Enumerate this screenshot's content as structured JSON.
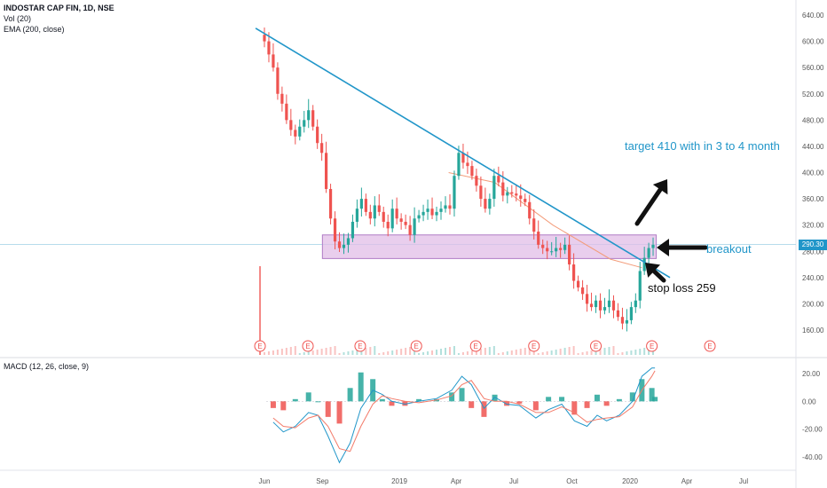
{
  "header": {
    "symbol": "INDOSTAR CAP FIN, 1D, NSE",
    "volume": "Vol (20)",
    "ema": "EMA (200, close)",
    "macd": "MACD (12, 26, close, 9)"
  },
  "colors": {
    "up": "#26a69a",
    "down": "#ef5350",
    "trendline": "#2196c9",
    "ema": "#f39c7a",
    "zone_fill": "#e1bee7",
    "zone_stroke": "#b07cc6",
    "macd_line": "#2196c9",
    "signal_line": "#f37b6a",
    "earnings": "#ef5350"
  },
  "annotations": {
    "target": "target 410 with in 3 to 4 month",
    "breakout": "breakout",
    "stop_loss": "stop loss 259",
    "current_price": "290.30"
  },
  "chart_data": [
    {
      "type": "candlestick",
      "title": "INDOSTAR CAP FIN, 1D, NSE",
      "y_ticks": [
        "640.00",
        "600.00",
        "560.00",
        "520.00",
        "480.00",
        "440.00",
        "400.00",
        "360.00",
        "320.00",
        "280.00",
        "240.00",
        "200.00",
        "160.00"
      ],
      "ylim": [
        120,
        650
      ],
      "x_ticks": [
        "Jun",
        "Sep",
        "2019",
        "Apr",
        "Jul",
        "Oct",
        "2020",
        "Apr",
        "Jul"
      ],
      "close_path": [
        [
          "2018-05-25",
          610
        ],
        [
          "2018-06-01",
          600
        ],
        [
          "2018-06-08",
          580
        ],
        [
          "2018-06-15",
          560
        ],
        [
          "2018-06-22",
          520
        ],
        [
          "2018-06-29",
          505
        ],
        [
          "2018-07-06",
          480
        ],
        [
          "2018-07-13",
          465
        ],
        [
          "2018-07-20",
          455
        ],
        [
          "2018-07-27",
          470
        ],
        [
          "2018-08-03",
          480
        ],
        [
          "2018-08-10",
          495
        ],
        [
          "2018-08-17",
          470
        ],
        [
          "2018-08-24",
          445
        ],
        [
          "2018-08-31",
          430
        ],
        [
          "2018-09-07",
          375
        ],
        [
          "2018-09-14",
          330
        ],
        [
          "2018-09-21",
          295
        ],
        [
          "2018-09-28",
          285
        ],
        [
          "2018-10-05",
          290
        ],
        [
          "2018-10-12",
          300
        ],
        [
          "2018-10-19",
          325
        ],
        [
          "2018-10-26",
          345
        ],
        [
          "2018-11-02",
          360
        ],
        [
          "2018-11-09",
          340
        ],
        [
          "2018-11-16",
          330
        ],
        [
          "2018-11-23",
          350
        ],
        [
          "2018-11-30",
          340
        ],
        [
          "2018-12-07",
          325
        ],
        [
          "2018-12-14",
          315
        ],
        [
          "2018-12-21",
          345
        ],
        [
          "2018-12-28",
          330
        ],
        [
          "2019-01-04",
          325
        ],
        [
          "2019-01-11",
          320
        ],
        [
          "2019-01-18",
          305
        ],
        [
          "2019-01-25",
          330
        ],
        [
          "2019-02-01",
          335
        ],
        [
          "2019-02-08",
          340
        ],
        [
          "2019-02-15",
          345
        ],
        [
          "2019-02-22",
          335
        ],
        [
          "2019-03-01",
          340
        ],
        [
          "2019-03-08",
          345
        ],
        [
          "2019-03-15",
          350
        ],
        [
          "2019-03-22",
          345
        ],
        [
          "2019-03-29",
          395
        ],
        [
          "2019-04-05",
          430
        ],
        [
          "2019-04-12",
          415
        ],
        [
          "2019-04-19",
          410
        ],
        [
          "2019-04-26",
          395
        ],
        [
          "2019-05-03",
          380
        ],
        [
          "2019-05-10",
          360
        ],
        [
          "2019-05-17",
          345
        ],
        [
          "2019-05-24",
          360
        ],
        [
          "2019-05-31",
          395
        ],
        [
          "2019-06-07",
          385
        ],
        [
          "2019-06-14",
          365
        ],
        [
          "2019-06-21",
          370
        ],
        [
          "2019-06-28",
          368
        ],
        [
          "2019-07-05",
          365
        ],
        [
          "2019-07-12",
          360
        ],
        [
          "2019-07-19",
          355
        ],
        [
          "2019-07-26",
          330
        ],
        [
          "2019-08-02",
          310
        ],
        [
          "2019-08-09",
          290
        ],
        [
          "2019-08-16",
          285
        ],
        [
          "2019-08-23",
          280
        ],
        [
          "2019-08-30",
          280
        ],
        [
          "2019-09-06",
          285
        ],
        [
          "2019-09-13",
          282
        ],
        [
          "2019-09-20",
          290
        ],
        [
          "2019-09-27",
          260
        ],
        [
          "2019-10-04",
          235
        ],
        [
          "2019-10-11",
          225
        ],
        [
          "2019-10-18",
          215
        ],
        [
          "2019-10-25",
          200
        ],
        [
          "2019-11-01",
          195
        ],
        [
          "2019-11-08",
          205
        ],
        [
          "2019-11-15",
          190
        ],
        [
          "2019-11-22",
          195
        ],
        [
          "2019-11-29",
          205
        ],
        [
          "2019-12-06",
          190
        ],
        [
          "2019-12-13",
          180
        ],
        [
          "2019-12-20",
          170
        ],
        [
          "2019-12-27",
          175
        ],
        [
          "2020-01-03",
          195
        ],
        [
          "2020-01-10",
          205
        ],
        [
          "2020-01-17",
          250
        ],
        [
          "2020-01-24",
          270
        ],
        [
          "2020-01-31",
          285
        ],
        [
          "2020-02-07",
          290
        ]
      ],
      "trendline": [
        [
          "2018-05-18",
          620
        ],
        [
          "2020-03-05",
          240
        ]
      ],
      "zone": {
        "from": "2018-09-01",
        "to": "2020-02-12",
        "top": 305,
        "bottom": 269
      },
      "ema_200": [
        [
          "2019-03-20",
          400
        ],
        [
          "2019-06-01",
          385
        ],
        [
          "2019-09-01",
          320
        ],
        [
          "2019-12-01",
          268
        ],
        [
          "2020-01-20",
          255
        ]
      ],
      "volume_spike": {
        "date": "2018-05-25",
        "value": "high"
      },
      "earnings_markers": [
        "2018-05-25",
        "2018-08-09",
        "2018-10-31",
        "2019-01-28",
        "2019-05-02",
        "2019-08-02",
        "2019-11-08",
        "2020-02-05",
        "2020-05-08"
      ]
    },
    {
      "type": "bar+line",
      "title": "MACD (12, 26, close, 9)",
      "y_ticks": [
        "20.00",
        "0.00",
        "-20.00",
        "-40.00"
      ],
      "ylim": [
        -50,
        30
      ],
      "macd": [
        [
          "2018-06-15",
          -15
        ],
        [
          "2018-07-01",
          -22
        ],
        [
          "2018-07-20",
          -18
        ],
        [
          "2018-08-10",
          -8
        ],
        [
          "2018-08-25",
          -10
        ],
        [
          "2018-09-10",
          -25
        ],
        [
          "2018-09-28",
          -44
        ],
        [
          "2018-10-15",
          -30
        ],
        [
          "2018-11-01",
          -5
        ],
        [
          "2018-11-20",
          8
        ],
        [
          "2018-12-05",
          5
        ],
        [
          "2018-12-20",
          0
        ],
        [
          "2019-01-10",
          -2
        ],
        [
          "2019-02-01",
          0
        ],
        [
          "2019-03-01",
          2
        ],
        [
          "2019-03-25",
          8
        ],
        [
          "2019-04-10",
          18
        ],
        [
          "2019-04-25",
          12
        ],
        [
          "2019-05-15",
          -5
        ],
        [
          "2019-06-01",
          3
        ],
        [
          "2019-06-20",
          -2
        ],
        [
          "2019-07-10",
          -3
        ],
        [
          "2019-08-05",
          -12
        ],
        [
          "2019-08-25",
          -6
        ],
        [
          "2019-09-15",
          -2
        ],
        [
          "2019-10-05",
          -14
        ],
        [
          "2019-10-25",
          -18
        ],
        [
          "2019-11-10",
          -10
        ],
        [
          "2019-11-25",
          -14
        ],
        [
          "2019-12-15",
          -10
        ],
        [
          "2020-01-05",
          0
        ],
        [
          "2020-01-20",
          18
        ],
        [
          "2020-02-05",
          24
        ],
        [
          "2020-02-10",
          24
        ]
      ],
      "signal": [
        [
          "2018-06-15",
          -12
        ],
        [
          "2018-07-01",
          -18
        ],
        [
          "2018-07-20",
          -19
        ],
        [
          "2018-08-10",
          -12
        ],
        [
          "2018-08-25",
          -10
        ],
        [
          "2018-09-10",
          -18
        ],
        [
          "2018-09-28",
          -34
        ],
        [
          "2018-10-15",
          -36
        ],
        [
          "2018-11-01",
          -18
        ],
        [
          "2018-11-20",
          -2
        ],
        [
          "2018-12-05",
          4
        ],
        [
          "2018-12-20",
          2
        ],
        [
          "2019-01-10",
          0
        ],
        [
          "2019-02-01",
          -1
        ],
        [
          "2019-03-01",
          1
        ],
        [
          "2019-03-25",
          4
        ],
        [
          "2019-04-10",
          12
        ],
        [
          "2019-04-25",
          15
        ],
        [
          "2019-05-15",
          2
        ],
        [
          "2019-06-01",
          0
        ],
        [
          "2019-06-20",
          0
        ],
        [
          "2019-07-10",
          -2
        ],
        [
          "2019-08-05",
          -8
        ],
        [
          "2019-08-25",
          -8
        ],
        [
          "2019-09-15",
          -4
        ],
        [
          "2019-10-05",
          -8
        ],
        [
          "2019-10-25",
          -15
        ],
        [
          "2019-11-10",
          -13
        ],
        [
          "2019-11-25",
          -12
        ],
        [
          "2019-12-15",
          -11
        ],
        [
          "2020-01-05",
          -4
        ],
        [
          "2020-01-20",
          8
        ],
        [
          "2020-02-05",
          18
        ],
        [
          "2020-02-10",
          22
        ]
      ]
    }
  ]
}
